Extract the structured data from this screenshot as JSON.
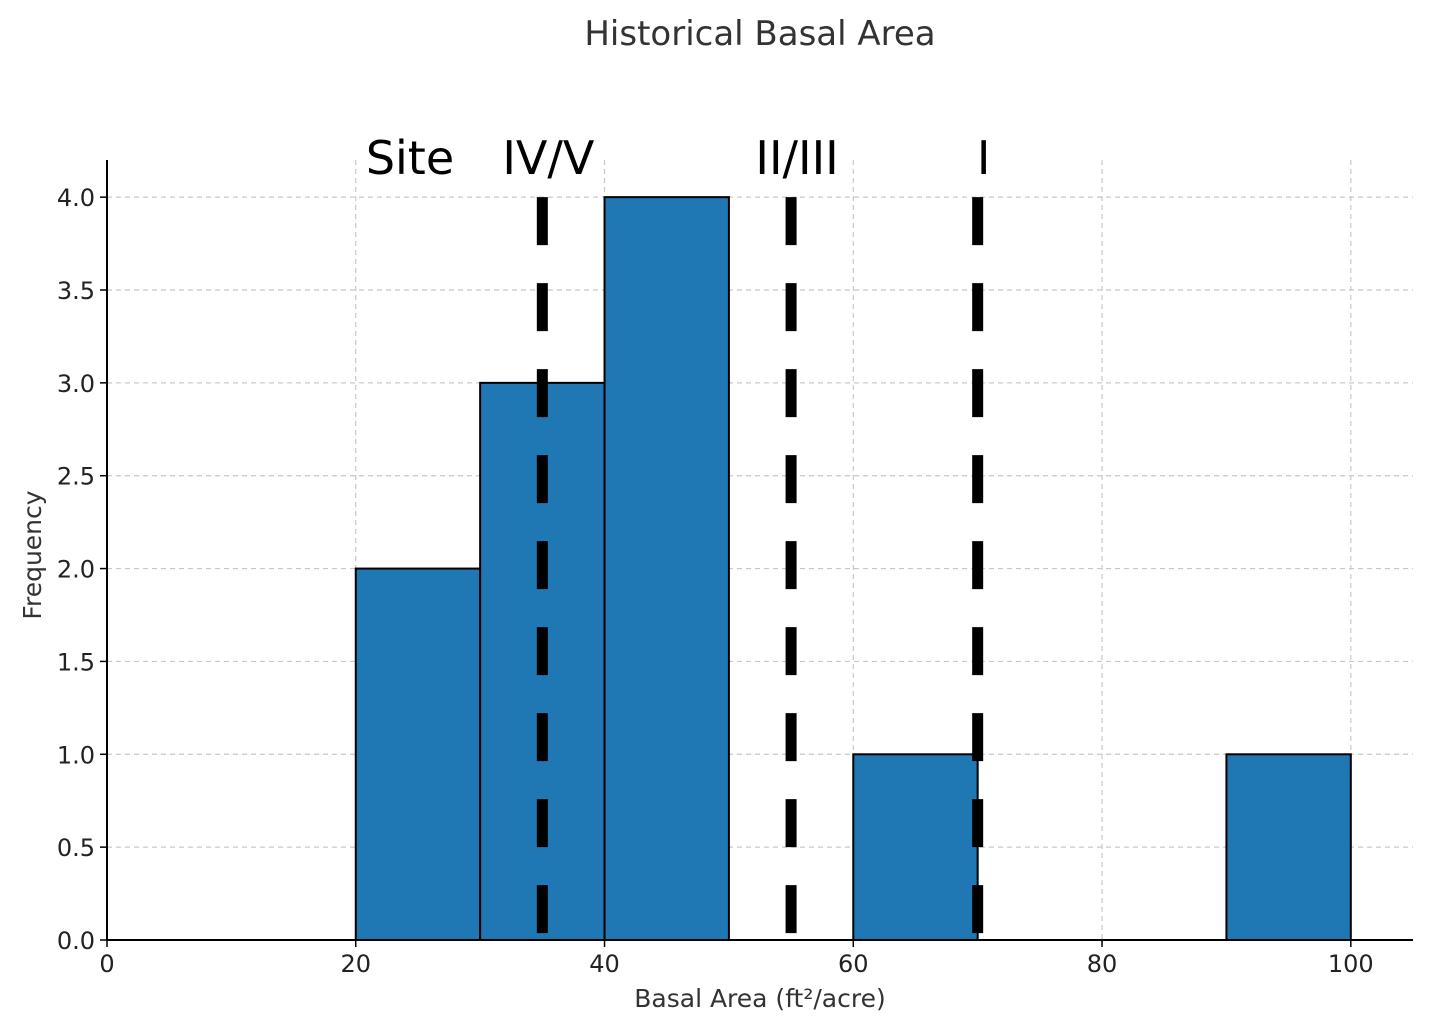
{
  "chart_data": {
    "type": "bar",
    "title": "Historical Basal Area",
    "xlabel": "Basal Area (ft²/acre)",
    "ylabel": "Frequency",
    "xlim": [
      0,
      105
    ],
    "ylim": [
      0,
      4.2
    ],
    "xticks": [
      "0",
      "20",
      "40",
      "60",
      "80",
      "100"
    ],
    "yticks": [
      "0.0",
      "0.5",
      "1.0",
      "1.5",
      "2.0",
      "2.5",
      "3.0",
      "3.5",
      "4.0"
    ],
    "bins": [
      {
        "start": 20,
        "end": 30,
        "count": 2
      },
      {
        "start": 30,
        "end": 40,
        "count": 3
      },
      {
        "start": 40,
        "end": 50,
        "count": 4
      },
      {
        "start": 60,
        "end": 70,
        "count": 1
      },
      {
        "start": 90,
        "end": 100,
        "count": 1
      }
    ],
    "bar_color": "#1f77b4",
    "grid": true,
    "class_lines": [
      {
        "label": "IV/V",
        "value": 35
      },
      {
        "label": "II/III",
        "value": 55
      },
      {
        "label": "I",
        "value": 70
      }
    ],
    "site_label": "Site"
  }
}
